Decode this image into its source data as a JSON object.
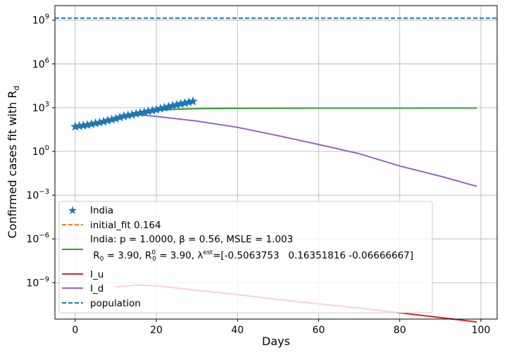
{
  "chart_data": {
    "type": "line",
    "xlabel": "Days",
    "ylabel": "Confirmed cases fit with R",
    "ylabel_sub": "d",
    "y_scale": "log",
    "xlim": [
      -5,
      104
    ],
    "ylim_exp": [
      -11.5,
      10
    ],
    "grid": true,
    "legend_position": "lower-left",
    "x_ticks": [
      0,
      20,
      40,
      60,
      80,
      100
    ],
    "y_ticks": [
      {
        "exp": 9,
        "base": "10",
        "sup": "9"
      },
      {
        "exp": 6,
        "base": "10",
        "sup": "6"
      },
      {
        "exp": 3,
        "base": "10",
        "sup": "3"
      },
      {
        "exp": 0,
        "base": "10",
        "sup": "0"
      },
      {
        "exp": -3,
        "base": "10",
        "sup": "−3"
      },
      {
        "exp": -6,
        "base": "10",
        "sup": "−6"
      },
      {
        "exp": -9,
        "base": "10",
        "sup": "−9"
      }
    ],
    "colors": {
      "india": "#1f77b4",
      "initial_fit": "#ff7f0e",
      "model": "#2ca02c",
      "I_u": "#d62728",
      "I_d": "#9467bd",
      "population": "#1f77b4"
    },
    "series": [
      {
        "name": "India",
        "marker": "star",
        "x": [
          0,
          1,
          2,
          3,
          4,
          5,
          6,
          7,
          8,
          9,
          10,
          11,
          12,
          13,
          14,
          15,
          16,
          17,
          18,
          19,
          20,
          21,
          22,
          23,
          24,
          25,
          26,
          27,
          28,
          29
        ],
        "y": [
          50,
          55,
          60,
          65,
          75,
          85,
          95,
          110,
          130,
          150,
          175,
          215,
          260,
          290,
          330,
          380,
          430,
          480,
          560,
          630,
          720,
          850,
          1000,
          1150,
          1350,
          1550,
          1800,
          2050,
          2350,
          2700
        ]
      },
      {
        "name": "initial_fit 0.164",
        "style": "dashed",
        "x": [
          0,
          5,
          10,
          15,
          20,
          25,
          29
        ],
        "y": [
          50,
          80,
          150,
          320,
          700,
          1400,
          2600
        ]
      },
      {
        "name": "model",
        "x": [
          0,
          5,
          10,
          13,
          15,
          20,
          25,
          30,
          40,
          50,
          60,
          70,
          80,
          90,
          99
        ],
        "y": [
          50,
          90,
          200,
          350,
          450,
          650,
          780,
          850,
          900,
          920,
          930,
          935,
          938,
          940,
          940
        ]
      },
      {
        "name": "I_u",
        "x": [
          10,
          15,
          20,
          30,
          40,
          50,
          60,
          70,
          80,
          90,
          99
        ],
        "y": [
          5e-10,
          7e-10,
          6e-10,
          3e-10,
          1.5e-10,
          7e-11,
          3.5e-11,
          1.8e-11,
          8.5e-12,
          4e-12,
          2e-12
        ]
      },
      {
        "name": "I_d",
        "x": [
          0,
          5,
          10,
          13,
          15,
          20,
          30,
          40,
          50,
          60,
          70,
          80,
          90,
          99
        ],
        "y": [
          50,
          95,
          200,
          330,
          330,
          250,
          120,
          45,
          12,
          3,
          0.7,
          0.1,
          0.02,
          0.004
        ]
      },
      {
        "name": "population",
        "style": "dashed",
        "y_const": 1380000000
      }
    ],
    "legend": {
      "india": "India",
      "initial_fit": "initial_fit 0.164",
      "model_line1": "India: p = 1.0000,  β =  0.56, MSLE = 1.003",
      "model_line2_a": " R",
      "model_line2_a_sub": "0",
      "model_line2_b": " = 3.90, R",
      "model_line2_b_sup": "0",
      "model_line2_b_sub": "0",
      "model_line2_c": " = 3.90, λ",
      "model_line2_c_sup": "est",
      "model_line2_d": "=[-0.5063753   0.16351816 -0.06666667]",
      "I_u": "I_u",
      "I_d": "I_d",
      "population": "population"
    }
  }
}
